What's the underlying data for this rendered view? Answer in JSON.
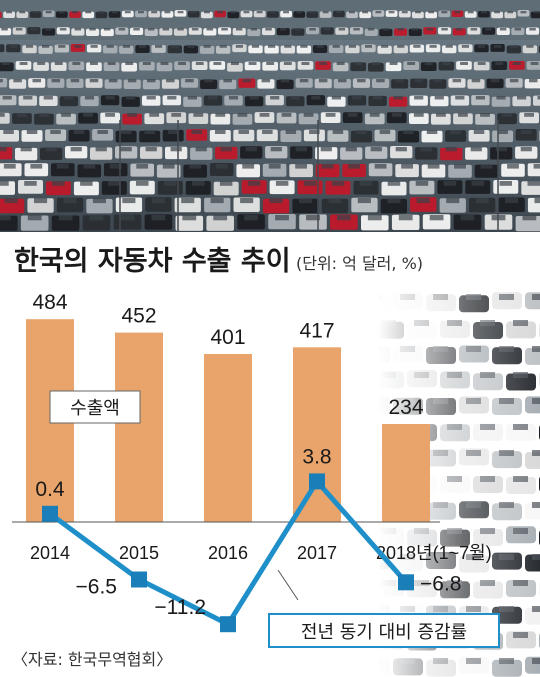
{
  "chart_data": {
    "type": "bar",
    "title": "한국의 자동차 수출 추이",
    "unit": "(단위: 억 달러, %)",
    "categories": [
      "2014",
      "2015",
      "2016",
      "2017",
      "2018년(1~7월)"
    ],
    "series": [
      {
        "name": "수출액",
        "type": "bar",
        "values": [
          484,
          452,
          401,
          417,
          234
        ],
        "labels": [
          "484",
          "452",
          "401",
          "417",
          "234"
        ],
        "color": "#e8a46a"
      },
      {
        "name": "전년 동기 대비 증감률",
        "type": "line",
        "values": [
          0.4,
          -6.5,
          -11.2,
          3.8,
          -6.8
        ],
        "labels": [
          "0.4",
          "−6.5",
          "−11.2",
          "3.8",
          "−6.8"
        ],
        "color": "#1f8fc9"
      }
    ],
    "source": "〈자료: 한국무역협회〉"
  },
  "colors": {
    "bar": "#e8a46a",
    "line": "#1f8fc9",
    "marker": "#1a7fb8",
    "background": "#ffffff",
    "text": "#1a1a1a"
  }
}
